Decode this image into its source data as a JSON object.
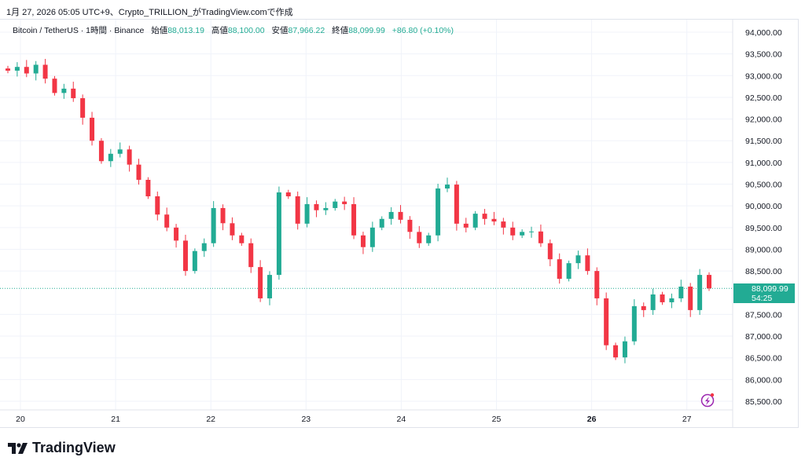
{
  "caption": "1月 27, 2026 05:05 UTC+9、Crypto_TRILLION_がTradingView.comで作成",
  "legend": {
    "symbol": "Bitcoin / TetherUS · 1時間 · Binance",
    "open_label": "始値",
    "open": "88,013.19",
    "high_label": "高値",
    "high": "88,100.00",
    "low_label": "安値",
    "low": "87,966.22",
    "close_label": "終値",
    "close": "88,099.99",
    "change": "+86.80 (+0.10%)"
  },
  "price_label": {
    "price": "88,099.99",
    "countdown": "54:25"
  },
  "logo": "TradingView",
  "colors": {
    "up": "#22ab94",
    "down": "#f23645",
    "accent": "#22ab94"
  },
  "icons": [
    "tradingview-logo-icon",
    "lightning-alert-icon"
  ],
  "chart_data": {
    "type": "candlestick",
    "interval": "1時間",
    "ylim": [
      85300,
      94200
    ],
    "yticks": [
      "94,000.00",
      "93,500.00",
      "93,000.00",
      "92,500.00",
      "92,000.00",
      "91,500.00",
      "91,000.00",
      "90,500.00",
      "90,000.00",
      "89,500.00",
      "89,000.00",
      "88,500.00",
      "87,500.00",
      "87,000.00",
      "86,500.00",
      "86,000.00",
      "85,500.00"
    ],
    "ytick_values": [
      94000,
      93500,
      93000,
      92500,
      92000,
      91500,
      91000,
      90500,
      90000,
      89500,
      89000,
      88500,
      87500,
      87000,
      86500,
      86000,
      85500
    ],
    "xticks": [
      "20",
      "21",
      "22",
      "23",
      "24",
      "25",
      "26",
      "27"
    ],
    "bold_xtick": "26",
    "last_price": 88099.99,
    "closes": [
      93114,
      93200,
      93050,
      93250,
      92930,
      92600,
      92700,
      92480,
      92030,
      91500,
      91030,
      91200,
      91300,
      90950,
      90600,
      90220,
      89800,
      89500,
      89200,
      88500,
      88960,
      89140,
      89950,
      89600,
      89320,
      89140,
      88590,
      87870,
      88410,
      90310,
      90220,
      89590,
      90040,
      89900,
      89950,
      90100,
      90040,
      89320,
      89050,
      89500,
      89700,
      89860,
      89680,
      89400,
      89140,
      89320,
      90400,
      90490,
      89590,
      89500,
      89820,
      89700,
      89640,
      89500,
      89320,
      89400,
      89410,
      89140,
      88770,
      88320,
      88680,
      88860,
      88500,
      87870,
      86790,
      86510,
      86880,
      87690,
      87600,
      87960,
      87780,
      87870,
      88140,
      87600,
      88410,
      88100
    ]
  }
}
